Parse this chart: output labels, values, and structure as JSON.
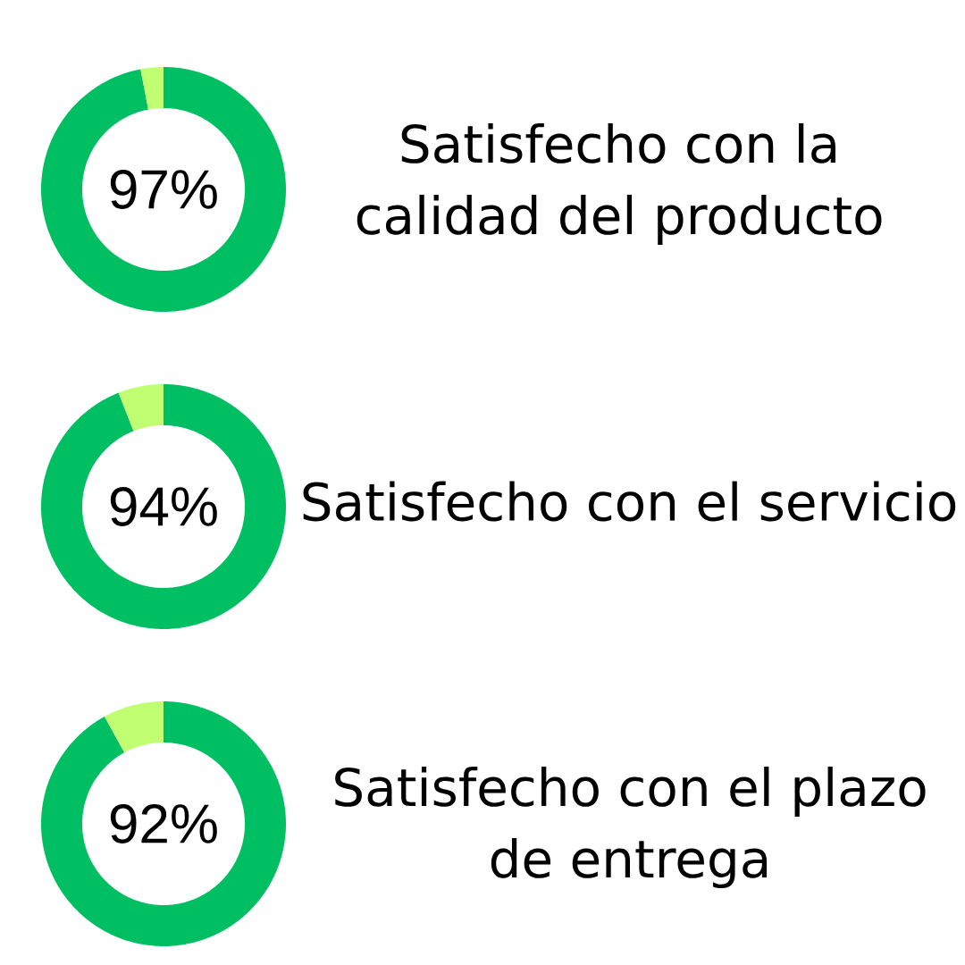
{
  "chart_data": [
    {
      "type": "donut",
      "title": "Satisfecho con la calidad del producto",
      "categories": [
        null,
        null
      ],
      "values": [
        97,
        3
      ],
      "colors": [
        "#00bf63",
        "#c1ff72"
      ],
      "value_labels": [
        "97%",
        null
      ]
    },
    {
      "type": "donut",
      "title": "Satisfecho con el servicio",
      "categories": [
        null,
        null
      ],
      "values": [
        94,
        6
      ],
      "colors": [
        "#00bf63",
        "#c1ff72"
      ],
      "value_labels": [
        "94%",
        null
      ]
    },
    {
      "type": "donut",
      "title": "Satisfecho con el plazo de entrega",
      "categories": [
        null,
        null
      ],
      "values": [
        92,
        8
      ],
      "colors": [
        "#00bf63",
        "#c1ff72"
      ],
      "value_labels": [
        "92%",
        null
      ]
    }
  ]
}
